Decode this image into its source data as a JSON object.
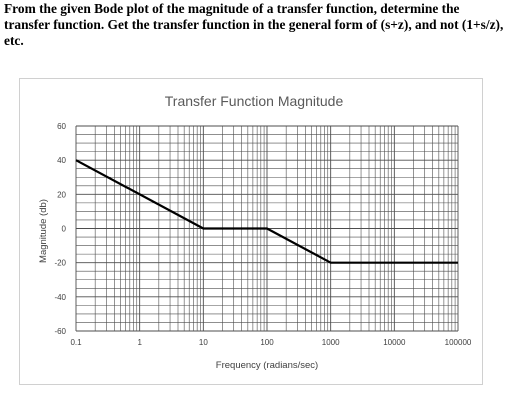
{
  "question": {
    "text": "From the given Bode plot of the magnitude of a transfer function, determine the transfer function.  Get the transfer function in the general form of (s+z), and not (1+s/z), etc."
  },
  "colors": {
    "line": "#000000",
    "grid": "#4d4d4d",
    "text": "#404040",
    "title": "#595959"
  },
  "chart_data": {
    "type": "line",
    "title": "Transfer Function Magnitude",
    "xlabel": "Frequency (radians/sec)",
    "ylabel": "Magnitude (db)",
    "xscale": "log",
    "xlim": [
      0.1,
      100000
    ],
    "ylim": [
      -60,
      60
    ],
    "grid": true,
    "x_tick_labels": [
      "0.1",
      "1",
      "10",
      "100",
      "1000",
      "10000",
      "100000"
    ],
    "y_tick_labels": [
      "60",
      "40",
      "20",
      "0",
      "-20",
      "-40",
      "-60"
    ],
    "x_ticks": [
      0.1,
      1,
      10,
      100,
      1000,
      10000,
      100000
    ],
    "y_ticks": [
      60,
      40,
      20,
      0,
      -20,
      -40,
      -60
    ],
    "series": [
      {
        "x": [
          0.1,
          10,
          100,
          1000,
          100000
        ],
        "y": [
          40,
          0,
          0,
          -20,
          -20
        ]
      }
    ]
  }
}
